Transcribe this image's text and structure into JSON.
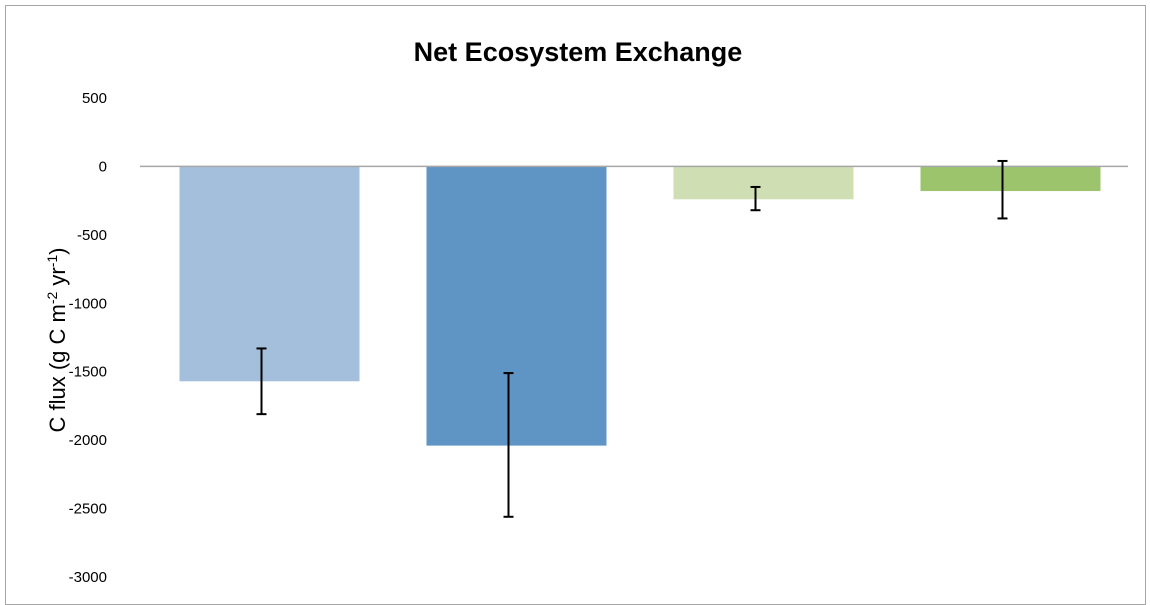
{
  "chart_data": {
    "type": "bar",
    "title": "Net Ecosystem Exchange",
    "ylabel": {
      "prefix": "C flux (g C m",
      "exp1": "-2",
      "middle": " yr",
      "exp2": "-1",
      "suffix": ")"
    },
    "xlabel": "",
    "categories": [
      "",
      "",
      "",
      ""
    ],
    "values": [
      -1570,
      -2040,
      -240,
      -180
    ],
    "error_low": [
      -1810,
      -2560,
      -320,
      -380
    ],
    "error_high": [
      -1330,
      -1510,
      -150,
      40
    ],
    "colors": [
      "#a3bfdb",
      "#5f95c5",
      "#cfdfb3",
      "#9cc46d"
    ],
    "ylim": [
      -3000,
      500
    ],
    "yticks": [
      500,
      0,
      -500,
      -1000,
      -1500,
      -2000,
      -2500,
      -3000
    ],
    "ytick_labels": [
      "500",
      "0",
      "-500",
      "-1000",
      "-1500",
      "-2000",
      "-2500",
      "-3000"
    ],
    "grid": false,
    "legend": "none",
    "zero_line_color": "#a6a6a6",
    "error_bar_color": "#000000"
  }
}
